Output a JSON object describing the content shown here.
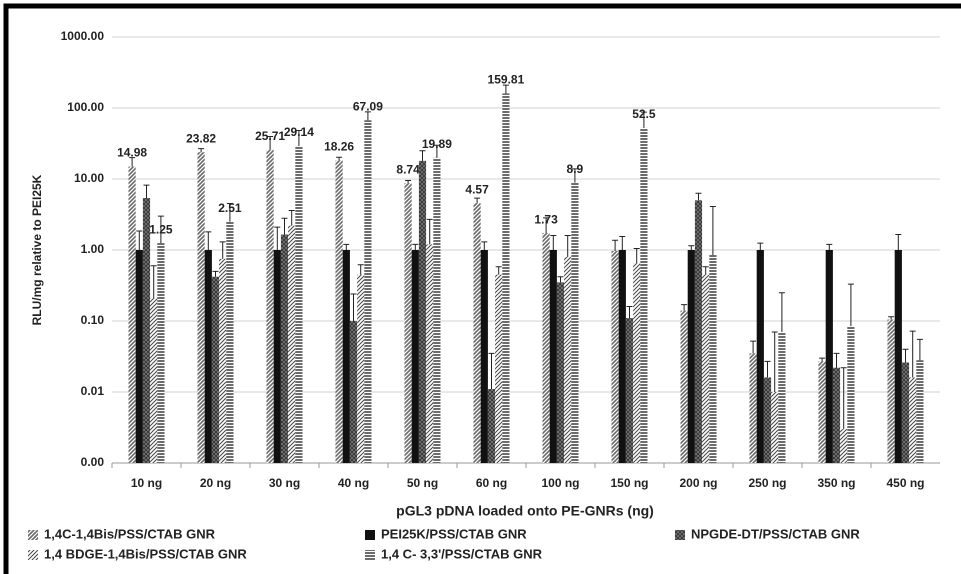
{
  "chart_data": {
    "type": "bar",
    "y_label": "RLU/mg relative to PEI25K",
    "x_label": "pGL3 pDNA loaded onto PE-GNRs (ng)",
    "categories": [
      "10 ng",
      "20 ng",
      "30 ng",
      "40 ng",
      "50 ng",
      "60 ng",
      "100 ng",
      "150 ng",
      "200 ng",
      "250 ng",
      "350 ng",
      "450 ng"
    ],
    "log_scale": true,
    "ylim": [
      0.001,
      1000
    ],
    "yticks": [
      {
        "value": 1000,
        "label": "1000.00"
      },
      {
        "value": 100,
        "label": "100.00"
      },
      {
        "value": 10,
        "label": "10.00"
      },
      {
        "value": 1,
        "label": "1.00"
      },
      {
        "value": 0.1,
        "label": "0.10"
      },
      {
        "value": 0.01,
        "label": "0.01"
      },
      {
        "value": 0.001,
        "label": "0.00"
      }
    ],
    "grid": true,
    "legend": "bottom",
    "series": [
      {
        "name": "1,4C-1,4Bis/PSS/CTAB GNR",
        "color": "#6a6a6a",
        "pattern": "diagonal",
        "values": [
          14.98,
          23.82,
          25.71,
          18.26,
          8.74,
          4.57,
          1.73,
          0.97,
          0.14,
          0.035,
          0.027,
          0.105
        ],
        "errors": [
          5,
          3,
          14,
          2,
          0.8,
          0.8,
          1.1,
          0.4,
          0.03,
          0.017,
          0.003,
          0.01
        ],
        "value_labels": [
          "14.98",
          "23.82",
          "25.71",
          "18.26",
          "8.74",
          "4.57",
          "1.73",
          null,
          null,
          null,
          null,
          null
        ]
      },
      {
        "name": "PEI25K/PSS/CTAB GNR",
        "color": "#111111",
        "pattern": "solid",
        "values": [
          1,
          1,
          1,
          1,
          1,
          1,
          1,
          1,
          1,
          1,
          1,
          1
        ],
        "errors": [
          0.85,
          0.8,
          1.1,
          0.2,
          0.2,
          0.3,
          0.6,
          0.55,
          0.15,
          0.25,
          0.2,
          0.65
        ]
      },
      {
        "name": "NPGDE-DT/PSS/CTAB GNR",
        "color": "#3a3a3a",
        "pattern": "crosshatch",
        "values": [
          5.4,
          0.42,
          1.65,
          0.1,
          18,
          0.011,
          0.35,
          0.11,
          5,
          0.016,
          0.022,
          0.026
        ],
        "errors": [
          2.8,
          0.08,
          1.15,
          0.14,
          7,
          0.024,
          0.07,
          0.05,
          1.3,
          0.011,
          0.013,
          0.014
        ]
      },
      {
        "name": "1,4 BDGE-1,4Bis/PSS/CTAB GNR",
        "color": "#444444",
        "pattern": "diagonal-light",
        "values": [
          0.21,
          0.75,
          2.2,
          0.45,
          1.2,
          0.45,
          0.8,
          0.65,
          0.45,
          0.01,
          0.003,
          0.016
        ],
        "errors": [
          0.39,
          0.55,
          1.4,
          0.17,
          1.5,
          0.13,
          0.8,
          0.4,
          0.13,
          0.06,
          0.019,
          0.056
        ]
      },
      {
        "name": "1,4 C- 3,3'/PSS/CTAB GNR",
        "color": "#3a3a3a",
        "pattern": "horizontal",
        "values": [
          1.25,
          2.51,
          29.14,
          67.09,
          19.89,
          159.81,
          8.9,
          52.5,
          0.85,
          0.07,
          0.085,
          0.028
        ],
        "errors": [
          1.75,
          2,
          19,
          21,
          10,
          50,
          5,
          35,
          3.25,
          0.18,
          0.245,
          0.027
        ],
        "value_labels": [
          "1.25",
          "2.51",
          "29.14",
          "67.09",
          "19.89",
          "159.81",
          "8.9",
          "52.5",
          null,
          null,
          null,
          null
        ]
      }
    ]
  }
}
